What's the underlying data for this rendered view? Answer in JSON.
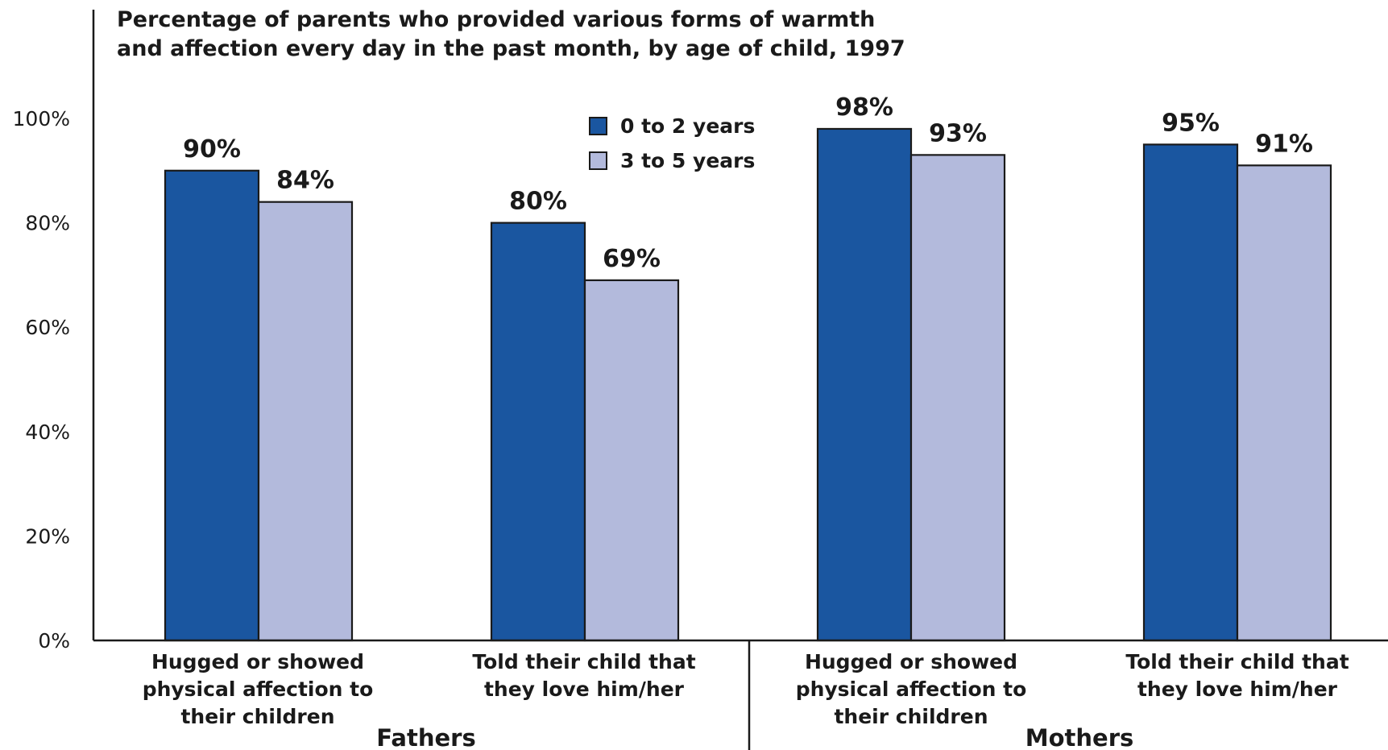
{
  "chart_data": {
    "type": "bar",
    "title": "Percentage of parents who provided various forms of warmth and affection every day in the past month, by age of child, 1997",
    "title_lines": [
      "Percentage of parents who provided various forms of warmth",
      "and affection every day in the past month, by age of child, 1997"
    ],
    "ylim": [
      0,
      100
    ],
    "yticks": [
      "0%",
      "20%",
      "40%",
      "60%",
      "80%",
      "100%"
    ],
    "grid": false,
    "legend_position": "top-center",
    "groups": [
      "Fathers",
      "Mothers"
    ],
    "categories": [
      {
        "group": "Fathers",
        "lines": [
          "Hugged or showed",
          "physical affection to",
          "their children"
        ]
      },
      {
        "group": "Fathers",
        "lines": [
          "Told their child that",
          "they love him/her"
        ]
      },
      {
        "group": "Mothers",
        "lines": [
          "Hugged or showed",
          "physical affection to",
          "their children"
        ]
      },
      {
        "group": "Mothers",
        "lines": [
          "Told their child that",
          "they love him/her"
        ]
      }
    ],
    "series": [
      {
        "name": "0 to 2 years",
        "color": "#1a56a0",
        "values": [
          90,
          80,
          98,
          95
        ],
        "labels": [
          "90%",
          "80%",
          "98%",
          "95%"
        ]
      },
      {
        "name": "3 to 5 years",
        "color": "#b3badc",
        "values": [
          84,
          69,
          93,
          91
        ],
        "labels": [
          "84%",
          "69%",
          "93%",
          "91%"
        ]
      }
    ]
  }
}
